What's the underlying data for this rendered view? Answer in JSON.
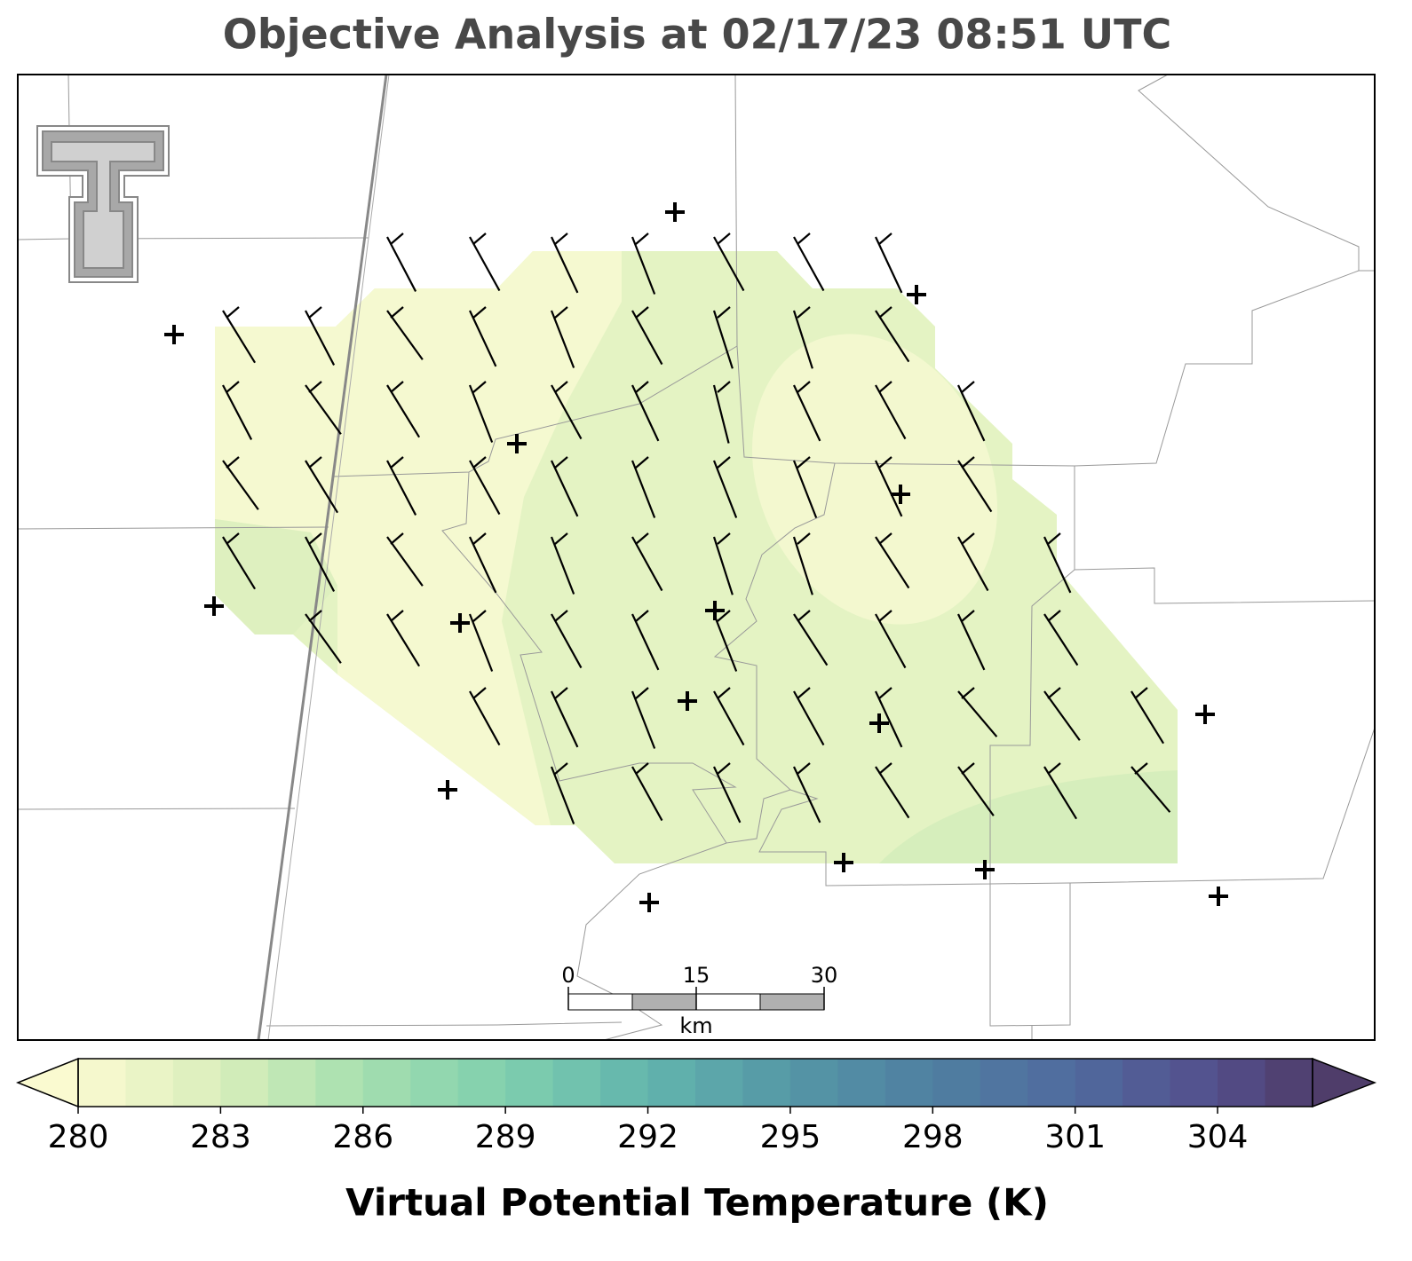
{
  "title": "Objective Analysis at 02/17/23 08:51 UTC",
  "scale_bar": {
    "ticks": [
      0,
      15,
      30
    ],
    "unit": "km"
  },
  "colorbar": {
    "label": "Virtual Potential Temperature (K)",
    "lim": [
      280,
      306
    ],
    "ticks": [
      280,
      283,
      286,
      289,
      292,
      295,
      298,
      301,
      304
    ]
  }
}
